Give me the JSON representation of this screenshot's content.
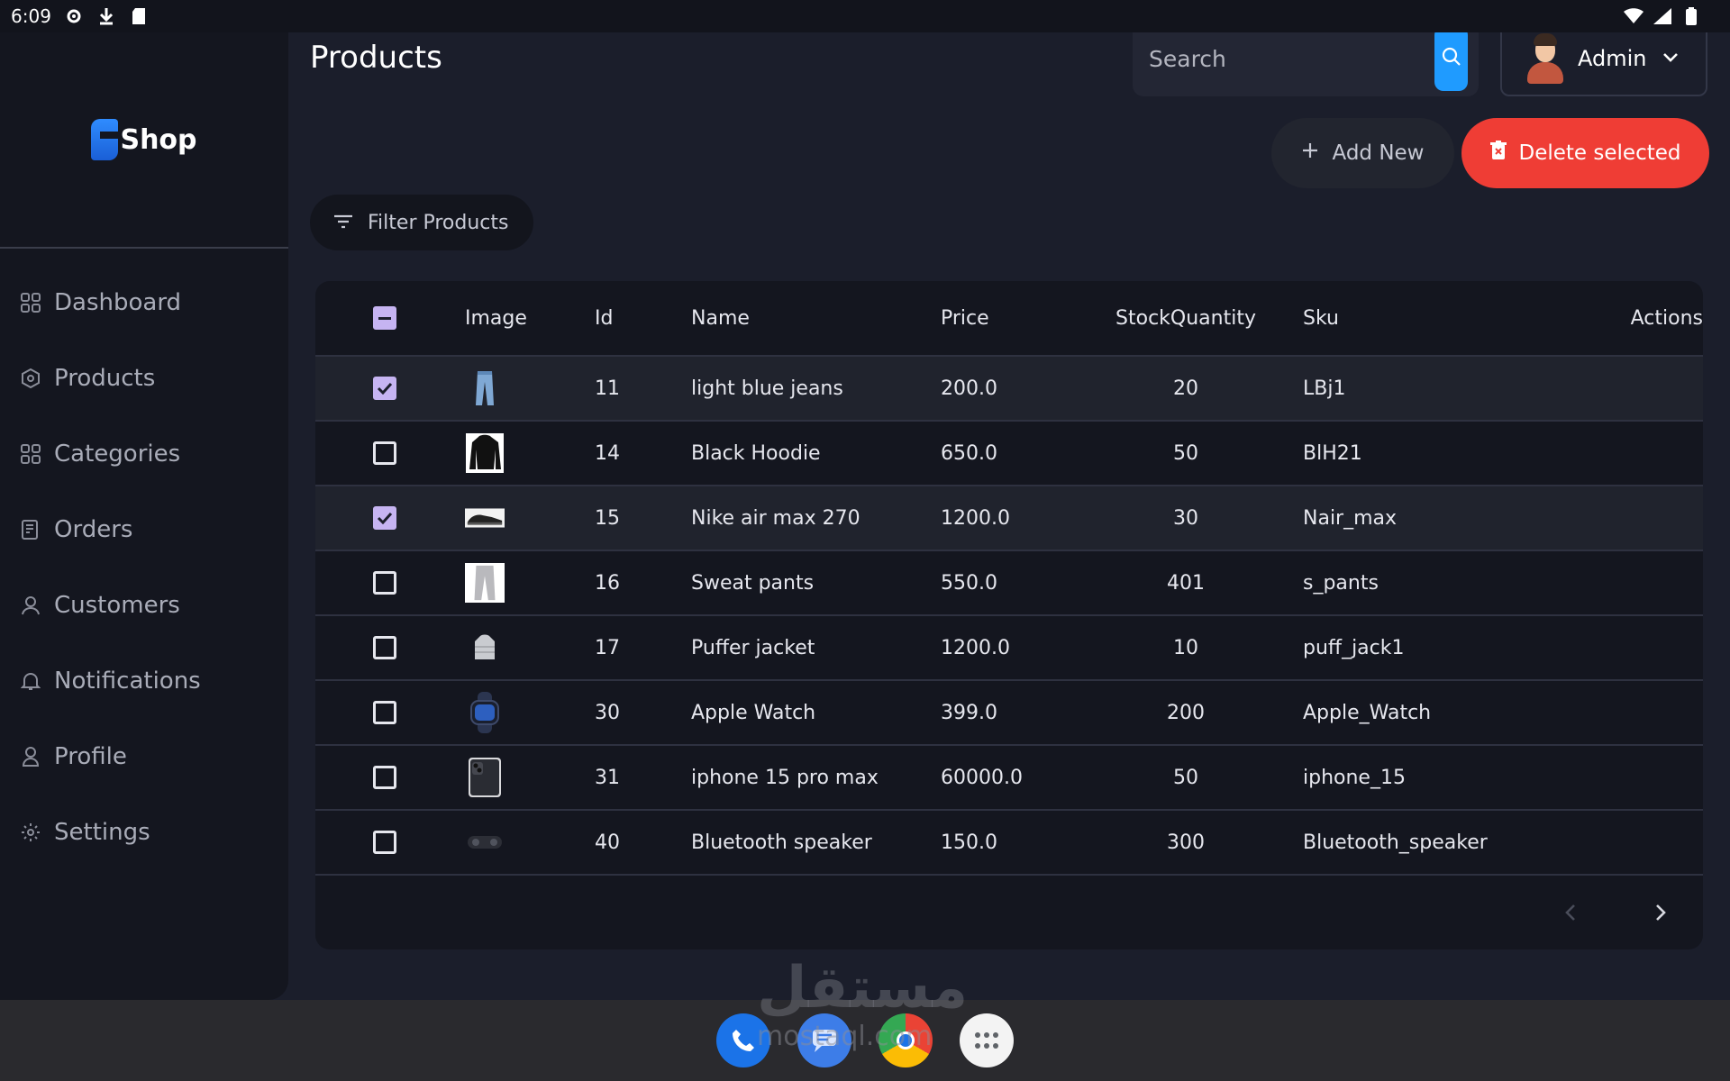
{
  "status_bar": {
    "time": "6:09"
  },
  "brand": {
    "name": "Shop"
  },
  "sidebar": {
    "items": [
      {
        "label": "Dashboard",
        "icon": "dashboard-icon"
      },
      {
        "label": "Products",
        "icon": "products-icon"
      },
      {
        "label": "Categories",
        "icon": "categories-icon"
      },
      {
        "label": "Orders",
        "icon": "orders-icon"
      },
      {
        "label": "Customers",
        "icon": "customers-icon"
      },
      {
        "label": "Notifications",
        "icon": "bell-icon"
      },
      {
        "label": "Profile",
        "icon": "profile-icon"
      },
      {
        "label": "Settings",
        "icon": "gear-icon"
      }
    ]
  },
  "header": {
    "title": "Products",
    "search_placeholder": "Search",
    "user_label": "Admin"
  },
  "actions": {
    "add_label": "Add New",
    "delete_label": "Delete selected",
    "filter_label": "Filter Products"
  },
  "table": {
    "columns": [
      "Image",
      "Id",
      "Name",
      "Price",
      "StockQuantity",
      "Sku",
      "Actions"
    ],
    "rows": [
      {
        "checked": true,
        "image": "jeans-thumbnail",
        "id": "11",
        "name": "light blue jeans",
        "price": "200.0",
        "stock": "20",
        "sku": "LBj1"
      },
      {
        "checked": false,
        "image": "hoodie-thumbnail",
        "id": "14",
        "name": "Black Hoodie",
        "price": "650.0",
        "stock": "50",
        "sku": "BlH21"
      },
      {
        "checked": true,
        "image": "sneaker-thumbnail",
        "id": "15",
        "name": "Nike air max 270",
        "price": "1200.0",
        "stock": "30",
        "sku": "Nair_max"
      },
      {
        "checked": false,
        "image": "pants-thumbnail",
        "id": "16",
        "name": "Sweat pants",
        "price": "550.0",
        "stock": "401",
        "sku": "s_pants"
      },
      {
        "checked": false,
        "image": "jacket-thumbnail",
        "id": "17",
        "name": "Puffer jacket",
        "price": "1200.0",
        "stock": "10",
        "sku": "puff_jack1"
      },
      {
        "checked": false,
        "image": "watch-thumbnail",
        "id": "30",
        "name": "Apple Watch",
        "price": "399.0",
        "stock": "200",
        "sku": "Apple_Watch"
      },
      {
        "checked": false,
        "image": "phone-thumbnail",
        "id": "31",
        "name": "iphone 15 pro max",
        "price": "60000.0",
        "stock": "50",
        "sku": "iphone_15"
      },
      {
        "checked": false,
        "image": "speaker-thumbnail",
        "id": "40",
        "name": "Bluetooth speaker",
        "price": "150.0",
        "stock": "300",
        "sku": "Bluetooth_speaker"
      }
    ]
  },
  "watermark": {
    "text": "مستقل",
    "sub": "mostaql.com"
  },
  "colors": {
    "accent_blue": "#1f9bff",
    "danger_red": "#ef3d35",
    "checkbox_purple": "#c6b4f2"
  }
}
